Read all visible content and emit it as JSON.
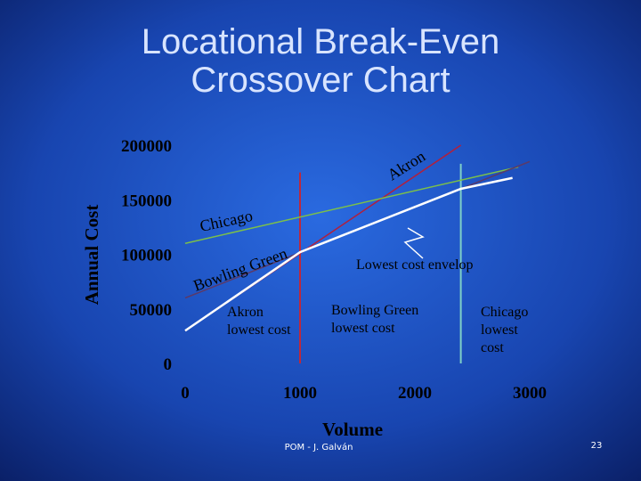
{
  "chart_data": {
    "type": "line",
    "title": [
      "Locational Break-Even",
      "Crossover Chart"
    ],
    "x_label": "Volume",
    "y_label": "Annual Cost",
    "xlim": [
      0,
      3000
    ],
    "xticks": [
      0,
      1000,
      2000,
      3000
    ],
    "ylim": [
      0,
      200000
    ],
    "yticks": [
      0,
      50000,
      100000,
      150000,
      200000
    ],
    "series": [
      {
        "name": "Akron",
        "color": "#b0203e",
        "x": [
          0,
          2400
        ],
        "values": [
          30000,
          200000
        ]
      },
      {
        "name": "Chicago",
        "color": "#7cc04a",
        "x": [
          0,
          2900
        ],
        "values": [
          110000,
          180000
        ]
      },
      {
        "name": "Bowling Green",
        "color": "#5a3a6a",
        "x": [
          0,
          3000
        ],
        "values": [
          60000,
          185000
        ]
      },
      {
        "name": "Lowest cost envelop",
        "color": "#ffffff",
        "x": [
          0,
          1000,
          2400,
          2850
        ],
        "values": [
          30000,
          102000,
          160000,
          170000
        ]
      }
    ],
    "vlines": [
      {
        "x": 1000,
        "y": [
          0,
          175000
        ],
        "color": "#c0283a"
      },
      {
        "x": 2400,
        "y": [
          0,
          183000
        ],
        "color": "#7fd0c8"
      }
    ],
    "annotations": [
      [
        "Akron",
        "lowest cost"
      ],
      [
        "Bowling Green",
        "lowest cost"
      ],
      [
        "Chicago",
        "lowest",
        "cost"
      ]
    ]
  },
  "footer": {
    "author": "POM - J. Galván",
    "page": "23"
  }
}
